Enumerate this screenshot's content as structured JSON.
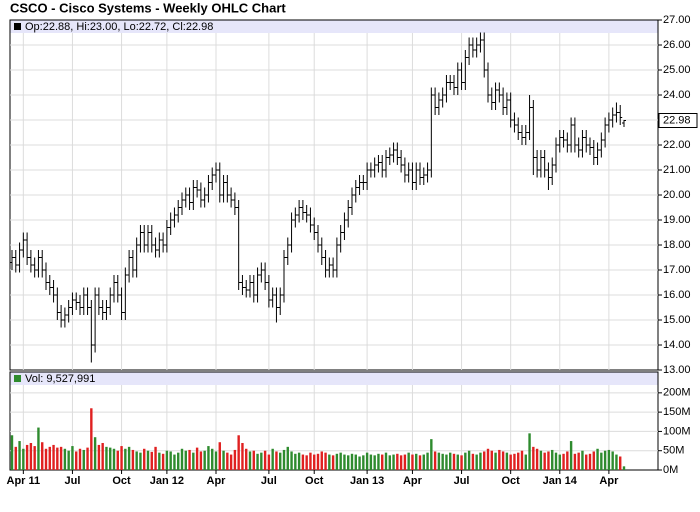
{
  "chart_data": {
    "type": "ohlc",
    "title": "CSCO - Cisco Systems - Weekly OHLC Chart",
    "ohlc_label": "Op:22.88, Hi:23.00, Lo:22.72, Cl:22.98",
    "volume_label": "Vol: 9,527,991",
    "categories": [
      null,
      null,
      null,
      "Apr 11",
      null,
      null,
      null,
      null,
      null,
      null,
      null,
      null,
      null,
      null,
      null,
      null,
      "Jul",
      null,
      null,
      null,
      null,
      null,
      null,
      null,
      null,
      null,
      null,
      null,
      null,
      "Oct",
      null,
      null,
      null,
      null,
      null,
      null,
      null,
      null,
      null,
      null,
      null,
      "Jan 12",
      null,
      null,
      null,
      null,
      null,
      null,
      null,
      null,
      null,
      null,
      null,
      null,
      "Apr",
      null,
      null,
      null,
      null,
      null,
      null,
      null,
      null,
      null,
      null,
      null,
      null,
      null,
      "Jul",
      null,
      null,
      null,
      null,
      null,
      null,
      null,
      null,
      null,
      null,
      null,
      "Oct",
      null,
      null,
      null,
      null,
      null,
      null,
      null,
      null,
      null,
      null,
      null,
      null,
      null,
      "Jan 13",
      null,
      null,
      null,
      null,
      null,
      null,
      null,
      null,
      null,
      null,
      null,
      "Apr",
      null,
      null,
      null,
      null,
      null,
      null,
      null,
      null,
      null,
      null,
      null,
      null,
      "Jul",
      null,
      null,
      null,
      null,
      null,
      null,
      null,
      null,
      null,
      null,
      null,
      null,
      "Oct",
      null,
      null,
      null,
      null,
      null,
      null,
      null,
      null,
      null,
      null,
      null,
      null,
      "Jan 14",
      null,
      null,
      null,
      null,
      null,
      null,
      null,
      null,
      null,
      null,
      null,
      null,
      "Apr",
      null,
      null,
      null,
      null
    ],
    "open": [
      17.3,
      17.5,
      17.2,
      17.8,
      18.2,
      17.5,
      17.2,
      17.0,
      17.5,
      17.0,
      16.5,
      16.3,
      16.0,
      15.3,
      15.0,
      15.2,
      15.5,
      15.8,
      15.7,
      15.5,
      16.0,
      15.5,
      14.0,
      16.0,
      15.5,
      15.3,
      15.5,
      16.0,
      16.5,
      16.0,
      15.3,
      16.8,
      17.5,
      17.0,
      18.0,
      18.5,
      18.0,
      18.5,
      18.0,
      17.8,
      18.2,
      18.0,
      18.7,
      19.0,
      19.2,
      19.5,
      19.8,
      20.0,
      19.7,
      20.3,
      20.2,
      19.8,
      20.0,
      20.5,
      20.8,
      21.0,
      20.0,
      20.5,
      20.0,
      19.8,
      19.5,
      16.5,
      16.3,
      16.2,
      16.5,
      16.0,
      16.8,
      17.0,
      16.5,
      15.8,
      16.0,
      15.5,
      16.0,
      17.5,
      18.0,
      19.0,
      19.2,
      19.5,
      19.3,
      19.2,
      18.8,
      18.5,
      18.0,
      17.5,
      17.0,
      17.2,
      17.0,
      18.0,
      18.5,
      19.0,
      19.5,
      20.0,
      20.3,
      20.5,
      20.5,
      21.0,
      21.0,
      21.2,
      21.3,
      21.0,
      21.5,
      21.6,
      21.8,
      21.5,
      21.2,
      20.8,
      21.0,
      20.5,
      21.0,
      20.7,
      20.8,
      21.0,
      24.0,
      23.5,
      23.8,
      24.0,
      24.5,
      24.5,
      24.3,
      25.0,
      24.5,
      25.5,
      26.0,
      25.8,
      26.0,
      26.2,
      25.0,
      24.0,
      23.7,
      24.2,
      24.0,
      23.5,
      23.8,
      23.0,
      22.8,
      22.5,
      22.3,
      22.5,
      23.5,
      21.5,
      21.0,
      21.5,
      21.0,
      20.7,
      21.2,
      22.0,
      22.3,
      22.2,
      22.0,
      22.8,
      22.0,
      21.8,
      22.3,
      22.0,
      21.9,
      21.5,
      21.8,
      22.2,
      22.8,
      23.0,
      23.2,
      23.3,
      22.88
    ],
    "high": [
      17.8,
      17.8,
      18.1,
      18.5,
      18.5,
      17.8,
      17.5,
      17.8,
      17.8,
      17.3,
      16.8,
      16.6,
      16.3,
      15.6,
      15.5,
      15.8,
      16.1,
      16.1,
      16.0,
      16.3,
      16.3,
      15.8,
      16.3,
      16.3,
      15.8,
      15.8,
      16.3,
      16.8,
      16.8,
      16.3,
      17.1,
      17.8,
      17.8,
      18.3,
      18.8,
      18.8,
      18.8,
      18.8,
      18.3,
      18.5,
      18.5,
      19.0,
      19.3,
      19.5,
      19.8,
      20.1,
      20.3,
      20.3,
      20.6,
      20.6,
      20.5,
      20.3,
      20.8,
      21.1,
      21.3,
      21.3,
      20.8,
      20.8,
      20.3,
      20.1,
      19.8,
      16.8,
      16.6,
      16.8,
      16.8,
      17.1,
      17.3,
      17.3,
      16.8,
      16.3,
      16.3,
      16.3,
      17.8,
      18.3,
      19.3,
      19.5,
      19.8,
      19.8,
      19.6,
      19.5,
      19.1,
      18.8,
      18.3,
      17.8,
      17.5,
      17.5,
      18.3,
      18.8,
      19.3,
      19.8,
      20.3,
      20.6,
      20.8,
      20.8,
      21.3,
      21.3,
      21.5,
      21.6,
      21.6,
      21.8,
      21.9,
      22.1,
      22.1,
      21.8,
      21.5,
      21.3,
      21.3,
      21.3,
      21.3,
      21.1,
      21.3,
      24.3,
      24.3,
      24.1,
      24.3,
      24.8,
      24.8,
      24.8,
      25.3,
      25.3,
      25.8,
      26.3,
      26.3,
      26.3,
      26.5,
      26.5,
      25.3,
      24.3,
      24.5,
      24.5,
      24.3,
      24.1,
      24.1,
      23.3,
      23.1,
      22.8,
      22.8,
      24.0,
      23.8,
      21.8,
      21.8,
      21.8,
      21.3,
      21.5,
      22.3,
      22.6,
      22.6,
      22.5,
      23.1,
      23.1,
      22.3,
      22.6,
      22.6,
      22.3,
      22.2,
      22.1,
      22.5,
      23.1,
      23.3,
      23.5,
      23.7,
      23.6,
      23.0
    ],
    "low": [
      17.0,
      16.9,
      16.9,
      17.5,
      17.2,
      16.9,
      16.7,
      16.7,
      16.7,
      16.2,
      16.0,
      15.7,
      15.0,
      14.7,
      14.7,
      14.9,
      15.2,
      15.4,
      15.2,
      15.2,
      15.2,
      13.3,
      13.7,
      15.2,
      15.0,
      15.0,
      15.2,
      15.7,
      15.7,
      15.0,
      15.0,
      16.5,
      16.7,
      16.7,
      17.7,
      17.7,
      17.7,
      17.7,
      17.5,
      17.5,
      17.7,
      17.7,
      18.4,
      18.7,
      18.9,
      19.2,
      19.5,
      19.4,
      19.4,
      19.9,
      19.5,
      19.5,
      19.7,
      20.2,
      20.5,
      19.7,
      19.7,
      19.7,
      19.5,
      19.2,
      16.2,
      16.0,
      15.9,
      15.9,
      15.7,
      15.7,
      16.5,
      16.2,
      15.5,
      15.5,
      14.9,
      15.2,
      15.7,
      17.2,
      17.7,
      18.7,
      18.9,
      19.0,
      18.9,
      18.5,
      18.2,
      17.7,
      17.2,
      16.7,
      16.7,
      16.7,
      16.7,
      17.7,
      18.2,
      18.7,
      19.2,
      19.7,
      20.0,
      20.2,
      20.2,
      20.7,
      20.7,
      20.9,
      20.7,
      20.7,
      21.2,
      21.3,
      21.2,
      20.9,
      20.5,
      20.5,
      20.2,
      20.2,
      20.4,
      20.4,
      20.5,
      20.7,
      23.2,
      23.2,
      23.5,
      23.7,
      24.2,
      24.0,
      24.0,
      24.2,
      24.2,
      25.2,
      25.5,
      25.5,
      25.7,
      24.7,
      23.7,
      23.4,
      23.4,
      23.7,
      23.2,
      23.2,
      22.7,
      22.5,
      22.2,
      22.0,
      22.0,
      22.2,
      20.8,
      20.7,
      20.7,
      20.7,
      20.2,
      20.4,
      20.9,
      21.7,
      21.9,
      21.7,
      21.7,
      21.7,
      21.5,
      21.5,
      21.7,
      21.6,
      21.2,
      21.2,
      21.5,
      21.9,
      22.5,
      22.7,
      22.9,
      22.8,
      22.72
    ],
    "close": [
      17.5,
      17.2,
      17.8,
      18.2,
      17.5,
      17.2,
      17.0,
      17.5,
      17.0,
      16.5,
      16.3,
      16.0,
      15.3,
      15.0,
      15.2,
      15.5,
      15.8,
      15.7,
      15.5,
      16.0,
      15.5,
      14.0,
      16.0,
      15.5,
      15.3,
      15.5,
      16.0,
      16.5,
      16.0,
      15.3,
      16.8,
      17.5,
      17.0,
      18.0,
      18.5,
      18.0,
      18.5,
      18.0,
      17.8,
      18.2,
      18.0,
      18.7,
      19.0,
      19.2,
      19.5,
      19.8,
      20.0,
      19.7,
      20.3,
      20.2,
      19.8,
      20.0,
      20.5,
      20.8,
      21.0,
      20.0,
      20.5,
      20.0,
      19.8,
      19.5,
      16.5,
      16.3,
      16.2,
      16.5,
      16.0,
      16.8,
      17.0,
      16.5,
      15.8,
      16.0,
      15.5,
      16.0,
      17.5,
      18.0,
      19.0,
      19.2,
      19.5,
      19.3,
      19.2,
      18.8,
      18.5,
      18.0,
      17.5,
      17.0,
      17.2,
      17.0,
      18.0,
      18.5,
      19.0,
      19.5,
      20.0,
      20.3,
      20.5,
      20.5,
      21.0,
      21.0,
      21.2,
      21.3,
      21.0,
      21.5,
      21.6,
      21.8,
      21.5,
      21.2,
      20.8,
      21.0,
      20.5,
      21.0,
      20.7,
      20.8,
      21.0,
      24.0,
      23.5,
      23.8,
      24.0,
      24.5,
      24.5,
      24.3,
      25.0,
      24.5,
      25.5,
      26.0,
      25.8,
      26.0,
      26.2,
      25.0,
      24.0,
      23.7,
      24.2,
      24.0,
      23.5,
      23.8,
      23.0,
      22.8,
      22.5,
      22.3,
      22.5,
      23.5,
      21.5,
      21.0,
      21.5,
      21.0,
      20.7,
      21.2,
      22.0,
      22.3,
      22.2,
      22.0,
      22.8,
      22.0,
      21.8,
      22.3,
      22.0,
      21.9,
      21.5,
      21.8,
      22.2,
      22.8,
      23.0,
      23.2,
      23.3,
      23.1,
      22.98
    ],
    "volume": [
      90,
      60,
      75,
      55,
      65,
      70,
      62,
      110,
      72,
      55,
      60,
      65,
      58,
      60,
      55,
      50,
      62,
      48,
      55,
      52,
      58,
      160,
      85,
      65,
      70,
      60,
      58,
      55,
      50,
      62,
      55,
      60,
      52,
      48,
      45,
      55,
      50,
      47,
      60,
      45,
      42,
      50,
      48,
      40,
      45,
      55,
      50,
      52,
      45,
      58,
      48,
      50,
      62,
      55,
      48,
      72,
      50,
      45,
      40,
      52,
      90,
      70,
      55,
      48,
      50,
      42,
      45,
      50,
      40,
      55,
      48,
      45,
      52,
      60,
      48,
      42,
      45,
      40,
      38,
      45,
      40,
      42,
      48,
      45,
      40,
      38,
      42,
      45,
      40,
      38,
      42,
      40,
      35,
      38,
      45,
      40,
      38,
      42,
      40,
      45,
      38,
      40,
      42,
      38,
      40,
      45,
      40,
      42,
      38,
      40,
      45,
      80,
      48,
      45,
      42,
      40,
      45,
      42,
      40,
      38,
      45,
      50,
      42,
      40,
      45,
      48,
      55,
      50,
      45,
      52,
      48,
      45,
      40,
      42,
      45,
      50,
      40,
      95,
      60,
      55,
      50,
      45,
      48,
      52,
      45,
      40,
      42,
      48,
      75,
      42,
      45,
      50,
      40,
      42,
      48,
      55,
      45,
      50,
      52,
      48,
      40,
      35,
      9.527991
    ],
    "ylim": [
      13,
      27
    ],
    "yticks": [
      {
        "value": 13,
        "label": "13.00"
      },
      {
        "value": 14,
        "label": "14.00"
      },
      {
        "value": 15,
        "label": "15.00"
      },
      {
        "value": 16,
        "label": "16.00"
      },
      {
        "value": 17,
        "label": "17.00"
      },
      {
        "value": 18,
        "label": "18.00"
      },
      {
        "value": 19,
        "label": "19.00"
      },
      {
        "value": 20,
        "label": "20.00"
      },
      {
        "value": 21,
        "label": "21.00"
      },
      {
        "value": 22,
        "label": "22.00"
      },
      {
        "value": 23,
        "label": "23.00"
      },
      {
        "value": 24,
        "label": "24.00"
      },
      {
        "value": 25,
        "label": "25.00"
      },
      {
        "value": 26,
        "label": "26.00"
      },
      {
        "value": 27,
        "label": "27.00"
      }
    ],
    "volume_ylim": [
      0,
      254
    ],
    "volume_yticks": [
      {
        "value": 0,
        "label": "0M"
      },
      {
        "value": 50,
        "label": "50M"
      },
      {
        "value": 100,
        "label": "100M"
      },
      {
        "value": 150,
        "label": "150M"
      },
      {
        "value": 200,
        "label": "200M"
      }
    ],
    "grid": true,
    "bar_color": "#000000",
    "up_color": "#2e8b2e",
    "down_color": "#e02020",
    "band_color": "#e6e6fa"
  }
}
